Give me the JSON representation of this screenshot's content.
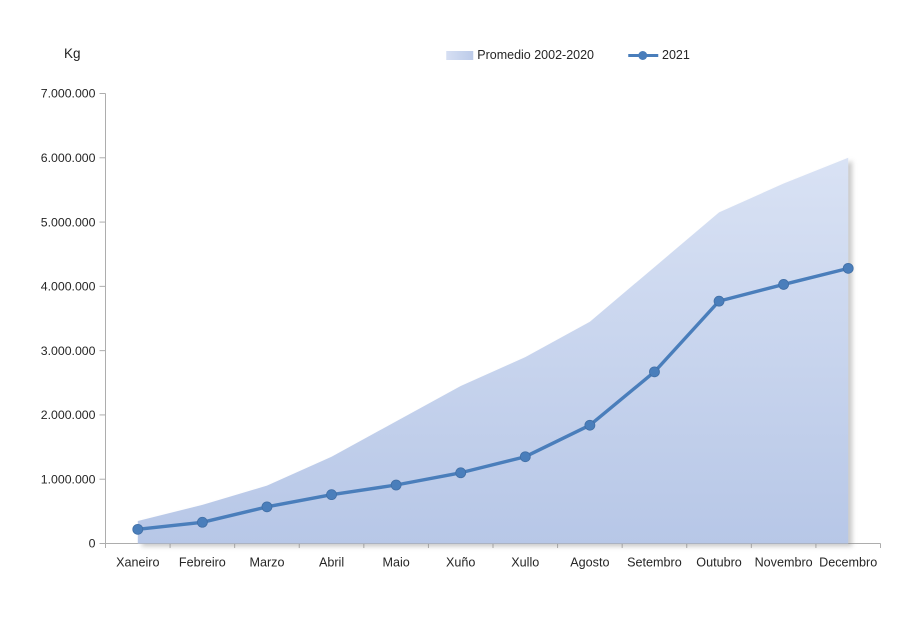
{
  "chart": {
    "kg_label": "Kg",
    "legend": {
      "area_label": "Promedio 2002-2020",
      "line_label": "2021"
    }
  },
  "chart_data": {
    "type": "area",
    "title": "",
    "xlabel": "",
    "ylabel": "Kg",
    "grid": false,
    "legend_position": "top-center",
    "categories": [
      "Xaneiro",
      "Febreiro",
      "Marzo",
      "Abril",
      "Maio",
      "Xuño",
      "Xullo",
      "Agosto",
      "Setembro",
      "Outubro",
      "Novembro",
      "Decembro"
    ],
    "series": [
      {
        "name": "Promedio 2002-2020",
        "type": "area",
        "color_top": "#d9e2f4",
        "color_bottom": "#b7c7e7",
        "values": [
          350000,
          600000,
          900000,
          1350000,
          1900000,
          2450000,
          2900000,
          3450000,
          4300000,
          5150000,
          5600000,
          6000000
        ]
      },
      {
        "name": "2021",
        "type": "line",
        "color": "#4a7ebb",
        "values": [
          220000,
          330000,
          570000,
          760000,
          910000,
          1100000,
          1350000,
          1840000,
          2670000,
          3770000,
          4030000,
          4280000
        ]
      }
    ],
    "ylim": [
      0,
      7000000
    ],
    "ytick_step": 1000000,
    "ytick_labels": [
      "0",
      "1.000.000",
      "2.000.000",
      "3.000.000",
      "4.000.000",
      "5.000.000",
      "6.000.000",
      "7.000.000"
    ],
    "axis_color": "#adadad",
    "label_color": "#262626"
  }
}
